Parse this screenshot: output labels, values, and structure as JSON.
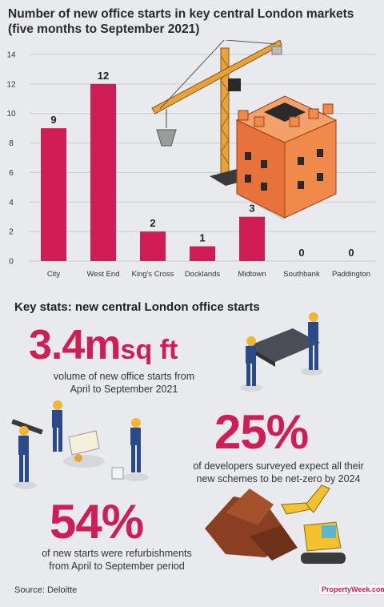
{
  "chart_data": {
    "type": "bar",
    "title": "Number of new office starts in key central London markets (five months to September 2021)",
    "categories": [
      "City",
      "West End",
      "King's Cross",
      "Docklands",
      "Midtown",
      "Southbank",
      "Paddington"
    ],
    "values": [
      9,
      12,
      2,
      1,
      3,
      0,
      0
    ],
    "ylim": [
      0,
      14
    ],
    "yticks": [
      0,
      2,
      4,
      6,
      8,
      10,
      12,
      14
    ],
    "grid": true,
    "bar_color": "#d11d55"
  },
  "stats": {
    "heading": "Key stats: new central London office starts",
    "stat1": {
      "value": "3.4m",
      "unit": "sq ft",
      "line1": "volume of new office starts from",
      "line2": "April to September 2021"
    },
    "stat2": {
      "value": "25%",
      "line1": "of developers surveyed expect all their",
      "line2": "new schemes to be net-zero by 2024"
    },
    "stat3": {
      "value": "54%",
      "line1": "of new starts were refurbishments",
      "line2": "from April to September period"
    }
  },
  "footer": {
    "source": "Source: Deloitte",
    "logo": "PropertyWeek.com"
  },
  "colors": {
    "accent": "#d11d55",
    "crane": "#e9a23b",
    "brick": "#e8733a",
    "worker_helmet": "#f2b632",
    "worker_clothes": "#2b4a8a"
  }
}
